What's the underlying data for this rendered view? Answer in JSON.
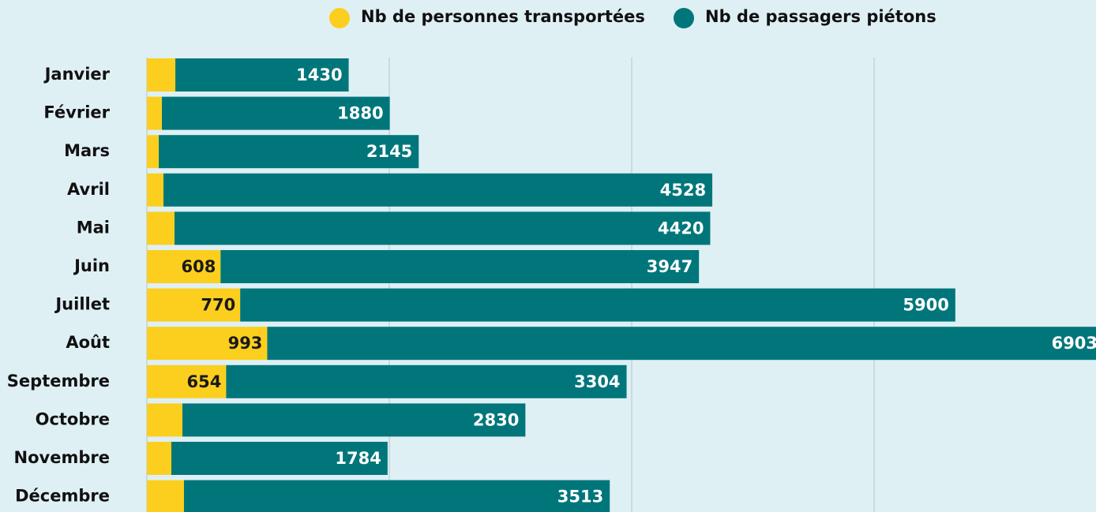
{
  "chart_data": {
    "type": "stacked-barh",
    "categories": [
      "Janvier",
      "Février",
      "Mars",
      "Avril",
      "Mai",
      "Juin",
      "Juillet",
      "Août",
      "Septembre",
      "Octobre",
      "Novembre",
      "Décembre"
    ],
    "series": [
      {
        "name": "Nb de personnes transportées",
        "color": "#fccf1e",
        "values": [
          235,
          124,
          98,
          137,
          228,
          608,
          770,
          993,
          654,
          293,
          202,
          306
        ],
        "value_labels": [
          null,
          null,
          null,
          null,
          null,
          "608",
          "770",
          "993",
          "654",
          null,
          null,
          null
        ]
      },
      {
        "name": "Nb de passagers piétons",
        "color": "#00767b",
        "values": [
          1430,
          1880,
          2145,
          4528,
          4420,
          3947,
          5900,
          6903,
          3304,
          2830,
          1784,
          3513
        ]
      }
    ],
    "xlim": [
      0,
      7830
    ],
    "xticks": [
      0,
      2000,
      4000,
      6000
    ],
    "grid": true
  }
}
